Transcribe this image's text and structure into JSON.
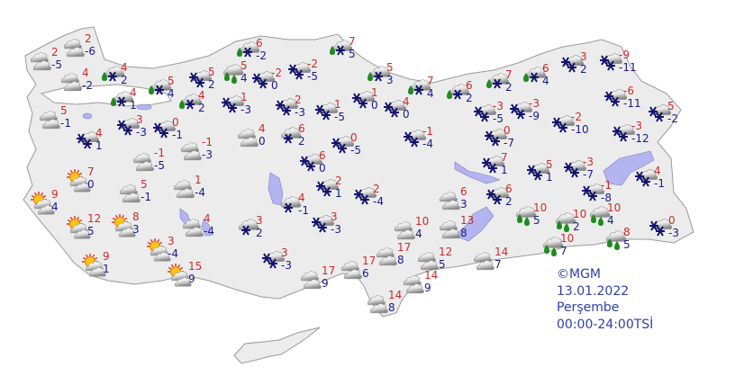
{
  "legend": {
    "copyright": "©MGM",
    "date": "13.01.2022",
    "day": "Perşembe",
    "period": "00:00-24:00TSİ"
  },
  "colors": {
    "max_temp": "#cc2a2a",
    "min_temp": "#1a1a8c",
    "land": "#ececec",
    "lake": "#b4b4f0",
    "snowflake": "#14146e",
    "rain_drop": "#1f8a1f"
  },
  "icon_legend": {
    "cloudy": "cloudy-icon",
    "snow": "cloud-snow-icon",
    "snow-single": "cloud-snowflake-icon",
    "rain-snow": "cloud-rain-snow-icon",
    "rain": "cloud-rain-icon",
    "sun-cloud": "partly-sunny-icon"
  },
  "stations": [
    {
      "icon": "cloudy",
      "max": "2",
      "min": "-6"
    },
    {
      "icon": "cloudy",
      "max": "2",
      "min": "-5"
    },
    {
      "icon": "cloudy",
      "max": "4",
      "min": "-2"
    },
    {
      "icon": "rain-snow",
      "max": "4",
      "min": "2"
    },
    {
      "icon": "rain-snow",
      "max": "5",
      "min": "4"
    },
    {
      "icon": "rain-snow",
      "max": "4",
      "min": "1"
    },
    {
      "icon": "snow",
      "max": "5",
      "min": "2"
    },
    {
      "icon": "rain-snow",
      "max": "4",
      "min": "2"
    },
    {
      "icon": "rain",
      "max": "5",
      "min": "4"
    },
    {
      "icon": "rain-snow",
      "max": "6",
      "min": "-2"
    },
    {
      "icon": "snow",
      "max": "1",
      "min": "-3"
    },
    {
      "icon": "cloudy",
      "max": "5",
      "min": "-1"
    },
    {
      "icon": "snow",
      "max": "4",
      "min": "1"
    },
    {
      "icon": "snow",
      "max": "3",
      "min": "-3"
    },
    {
      "icon": "snow",
      "max": "0",
      "min": "-1"
    },
    {
      "icon": "cloudy",
      "max": "-1",
      "min": "-5"
    },
    {
      "icon": "cloudy",
      "max": "-1",
      "min": "-3"
    },
    {
      "icon": "snow",
      "max": "-2",
      "min": "0"
    },
    {
      "icon": "rain-snow",
      "max": "7",
      "min": "5"
    },
    {
      "icon": "snow",
      "max": "-2",
      "min": "-5"
    },
    {
      "icon": "rain-snow",
      "max": "5",
      "min": "3"
    },
    {
      "icon": "rain-snow",
      "max": "7",
      "min": "4"
    },
    {
      "icon": "rain-snow",
      "max": "6",
      "min": "2"
    },
    {
      "icon": "rain-snow",
      "max": "7",
      "min": "2"
    },
    {
      "icon": "rain-snow",
      "max": "6",
      "min": "4"
    },
    {
      "icon": "snow",
      "max": "3",
      "min": "2"
    },
    {
      "icon": "snow",
      "max": "-9",
      "min": "-11"
    },
    {
      "icon": "snow",
      "max": "-6",
      "min": "-11"
    },
    {
      "icon": "snow",
      "max": "5",
      "min": "-2"
    },
    {
      "icon": "snow",
      "max": "-3",
      "min": "-12"
    },
    {
      "icon": "snow",
      "max": "-2",
      "min": "-10"
    },
    {
      "icon": "snow",
      "max": "-3",
      "min": "-9"
    },
    {
      "icon": "snow",
      "max": "-3",
      "min": "-5"
    },
    {
      "icon": "snow",
      "max": "0",
      "min": "-7"
    },
    {
      "icon": "snow",
      "max": "2",
      "min": "-3"
    },
    {
      "icon": "snow",
      "max": "1",
      "min": "-5"
    },
    {
      "icon": "snow",
      "max": "1",
      "min": "0"
    },
    {
      "icon": "snow",
      "max": "4",
      "min": "0"
    },
    {
      "icon": "snow",
      "max": "-1",
      "min": "-4"
    },
    {
      "icon": "cloudy",
      "max": "4",
      "min": "0"
    },
    {
      "icon": "snow-single",
      "max": "6",
      "min": "2"
    },
    {
      "icon": "snow",
      "max": "0",
      "min": "-5"
    },
    {
      "icon": "snow",
      "max": "6",
      "min": "0"
    },
    {
      "icon": "snow",
      "max": "2",
      "min": "1"
    },
    {
      "icon": "snow",
      "max": "2",
      "min": "-4"
    },
    {
      "icon": "snow-single",
      "max": "4",
      "min": "-1"
    },
    {
      "icon": "snow",
      "max": "3",
      "min": "-3"
    },
    {
      "icon": "snow-single",
      "max": "3",
      "min": "2"
    },
    {
      "icon": "snow",
      "max": "3",
      "min": "-3"
    },
    {
      "icon": "cloudy",
      "max": "17",
      "min": "9"
    },
    {
      "icon": "cloudy",
      "max": "17",
      "min": "6"
    },
    {
      "icon": "cloudy",
      "max": "14",
      "min": "8"
    },
    {
      "icon": "cloudy",
      "max": "17",
      "min": "8"
    },
    {
      "icon": "cloudy",
      "max": "10",
      "min": "4"
    },
    {
      "icon": "cloudy",
      "max": "12",
      "min": "5"
    },
    {
      "icon": "cloudy",
      "max": "14",
      "min": "9"
    },
    {
      "icon": "cloudy",
      "max": "6",
      "min": "3"
    },
    {
      "icon": "cloudy",
      "max": "13",
      "min": "8"
    },
    {
      "icon": "cloudy",
      "max": "14",
      "min": "7"
    },
    {
      "icon": "snow",
      "max": "7",
      "min": "1"
    },
    {
      "icon": "snow",
      "max": "6",
      "min": "2"
    },
    {
      "icon": "snow",
      "max": "5",
      "min": "1"
    },
    {
      "icon": "snow",
      "max": "-3",
      "min": "-7"
    },
    {
      "icon": "snow",
      "max": "-1",
      "min": "-8"
    },
    {
      "icon": "snow",
      "max": "4",
      "min": "-1"
    },
    {
      "icon": "rain",
      "max": "10",
      "min": "5"
    },
    {
      "icon": "rain",
      "max": "10",
      "min": "2"
    },
    {
      "icon": "rain",
      "max": "10",
      "min": "4"
    },
    {
      "icon": "rain",
      "max": "10",
      "min": "7"
    },
    {
      "icon": "rain",
      "max": "8",
      "min": "5"
    },
    {
      "icon": "snow",
      "max": "0",
      "min": "-3"
    },
    {
      "icon": "sun-cloud",
      "max": "7",
      "min": "0"
    },
    {
      "icon": "sun-cloud",
      "max": "9",
      "min": "4"
    },
    {
      "icon": "cloudy",
      "max": "5",
      "min": "-1"
    },
    {
      "icon": "cloudy",
      "max": "1",
      "min": "-4"
    },
    {
      "icon": "sun-cloud",
      "max": "12",
      "min": "5"
    },
    {
      "icon": "sun-cloud",
      "max": "8",
      "min": "3"
    },
    {
      "icon": "cloudy",
      "max": "4",
      "min": "-4"
    },
    {
      "icon": "sun-cloud",
      "max": "3",
      "min": "-4"
    },
    {
      "icon": "sun-cloud",
      "max": "9",
      "min": "1"
    },
    {
      "icon": "sun-cloud",
      "max": "15",
      "min": "9"
    }
  ]
}
